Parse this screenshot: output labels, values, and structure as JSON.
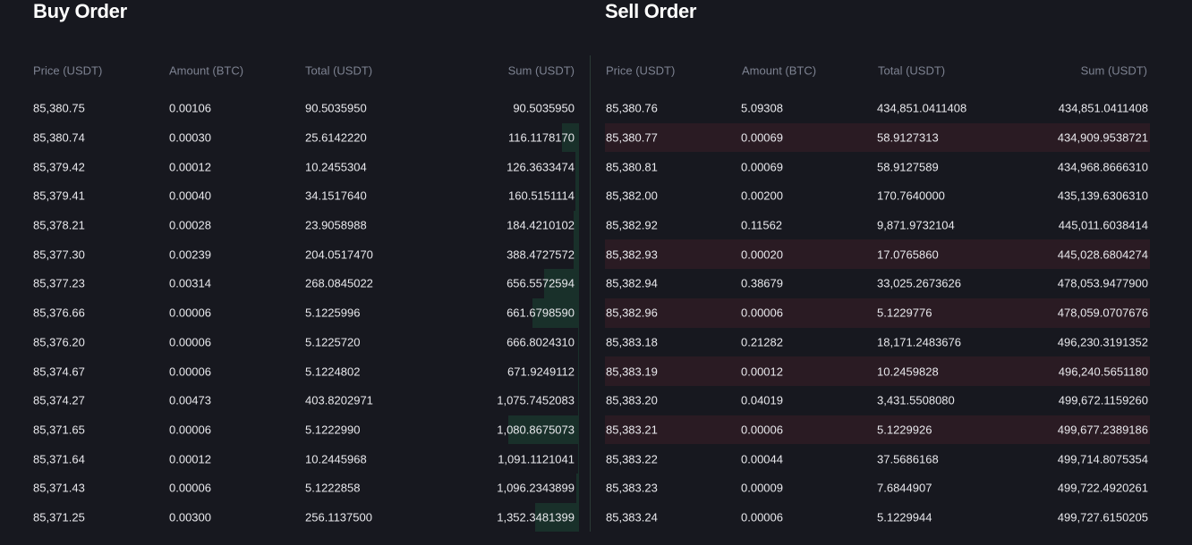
{
  "buy": {
    "title": "Buy Order",
    "headers": [
      "Price (USDT)",
      "Amount (BTC)",
      "Total (USDT)",
      "Sum (USDT)"
    ],
    "color": "#19302a",
    "rows": [
      {
        "price": "85,380.75",
        "amount": "0.00106",
        "total": "90.5035950",
        "sum": "90.5035950",
        "depth": 0
      },
      {
        "price": "85,380.74",
        "amount": "0.00030",
        "total": "25.6142220",
        "sum": "116.1178170",
        "depth": 0.13
      },
      {
        "price": "85,379.42",
        "amount": "0.00012",
        "total": "10.2455304",
        "sum": "126.3633474",
        "depth": 0.03
      },
      {
        "price": "85,379.41",
        "amount": "0.00040",
        "total": "34.1517640",
        "sum": "160.5151114",
        "depth": 0.03
      },
      {
        "price": "85,378.21",
        "amount": "0.00028",
        "total": "23.9058988",
        "sum": "184.4210102",
        "depth": 0.04
      },
      {
        "price": "85,377.30",
        "amount": "0.00239",
        "total": "204.0517470",
        "sum": "388.4727572",
        "depth": 0.04
      },
      {
        "price": "85,377.23",
        "amount": "0.00314",
        "total": "268.0845022",
        "sum": "656.5572594",
        "depth": 0.26
      },
      {
        "price": "85,376.66",
        "amount": "0.00006",
        "total": "5.1225996",
        "sum": "661.6798590",
        "depth": 0.35
      },
      {
        "price": "85,376.20",
        "amount": "0.00006",
        "total": "5.1225720",
        "sum": "666.8024310",
        "depth": 0.01
      },
      {
        "price": "85,374.67",
        "amount": "0.00006",
        "total": "5.1224802",
        "sum": "671.9249112",
        "depth": 0.01
      },
      {
        "price": "85,374.27",
        "amount": "0.00473",
        "total": "403.8202971",
        "sum": "1,075.7452083",
        "depth": 0.01
      },
      {
        "price": "85,371.65",
        "amount": "0.00006",
        "total": "5.1222990",
        "sum": "1,080.8675073",
        "depth": 0.53
      },
      {
        "price": "85,371.64",
        "amount": "0.00012",
        "total": "10.2445968",
        "sum": "1,091.1121041",
        "depth": 0.01
      },
      {
        "price": "85,371.43",
        "amount": "0.00006",
        "total": "5.1222858",
        "sum": "1,096.2343899",
        "depth": 0.02
      },
      {
        "price": "85,371.25",
        "amount": "0.00300",
        "total": "256.1137500",
        "sum": "1,352.3481399",
        "depth": 0.33
      }
    ]
  },
  "sell": {
    "title": "Sell Order",
    "headers": [
      "Price (USDT)",
      "Amount (BTC)",
      "Total (USDT)",
      "Sum (USDT)"
    ],
    "color": "#2a1b23",
    "rows": [
      {
        "price": "85,380.76",
        "amount": "5.09308",
        "total": "434,851.0411408",
        "sum": "434,851.0411408",
        "hl": false
      },
      {
        "price": "85,380.77",
        "amount": "0.00069",
        "total": "58.9127313",
        "sum": "434,909.9538721",
        "hl": true
      },
      {
        "price": "85,380.81",
        "amount": "0.00069",
        "total": "58.9127589",
        "sum": "434,968.8666310",
        "hl": false
      },
      {
        "price": "85,382.00",
        "amount": "0.00200",
        "total": "170.7640000",
        "sum": "435,139.6306310",
        "hl": false
      },
      {
        "price": "85,382.92",
        "amount": "0.11562",
        "total": "9,871.9732104",
        "sum": "445,011.6038414",
        "hl": false
      },
      {
        "price": "85,382.93",
        "amount": "0.00020",
        "total": "17.0765860",
        "sum": "445,028.6804274",
        "hl": true
      },
      {
        "price": "85,382.94",
        "amount": "0.38679",
        "total": "33,025.2673626",
        "sum": "478,053.9477900",
        "hl": false
      },
      {
        "price": "85,382.96",
        "amount": "0.00006",
        "total": "5.1229776",
        "sum": "478,059.0707676",
        "hl": true
      },
      {
        "price": "85,383.18",
        "amount": "0.21282",
        "total": "18,171.2483676",
        "sum": "496,230.3191352",
        "hl": false
      },
      {
        "price": "85,383.19",
        "amount": "0.00012",
        "total": "10.2459828",
        "sum": "496,240.5651180",
        "hl": true
      },
      {
        "price": "85,383.20",
        "amount": "0.04019",
        "total": "3,431.5508080",
        "sum": "499,672.1159260",
        "hl": false
      },
      {
        "price": "85,383.21",
        "amount": "0.00006",
        "total": "5.1229926",
        "sum": "499,677.2389186",
        "hl": true
      },
      {
        "price": "85,383.22",
        "amount": "0.00044",
        "total": "37.5686168",
        "sum": "499,714.8075354",
        "hl": false
      },
      {
        "price": "85,383.23",
        "amount": "0.00009",
        "total": "7.6844907",
        "sum": "499,722.4920261",
        "hl": false
      },
      {
        "price": "85,383.24",
        "amount": "0.00006",
        "total": "5.1229944",
        "sum": "499,727.6150205",
        "hl": false
      }
    ]
  }
}
